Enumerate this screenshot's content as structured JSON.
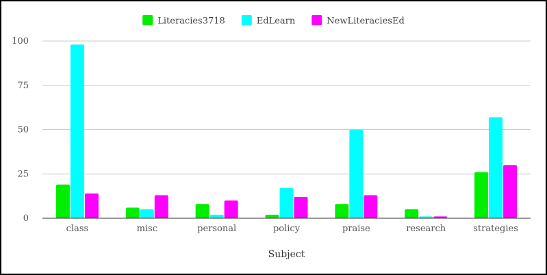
{
  "chart_data": {
    "type": "bar",
    "title": "",
    "xlabel": "Subject",
    "ylabel": "",
    "ylim": [
      0,
      100
    ],
    "yticks": [
      0,
      25,
      50,
      75,
      100
    ],
    "grid": true,
    "legend_position": "top-center",
    "categories": [
      "class",
      "misc",
      "personal",
      "policy",
      "praise",
      "research",
      "strategies"
    ],
    "series": [
      {
        "name": "Literacies3718",
        "color": "#00ee00",
        "values": [
          19,
          6,
          8,
          2,
          8,
          5,
          26
        ]
      },
      {
        "name": "EdLearn",
        "color": "#00ffff",
        "values": [
          98,
          5,
          2,
          17,
          50,
          1,
          57
        ]
      },
      {
        "name": "NewLiteraciesEd",
        "color": "#ff00ff",
        "values": [
          14,
          13,
          10,
          12,
          13,
          1,
          30
        ]
      }
    ]
  }
}
